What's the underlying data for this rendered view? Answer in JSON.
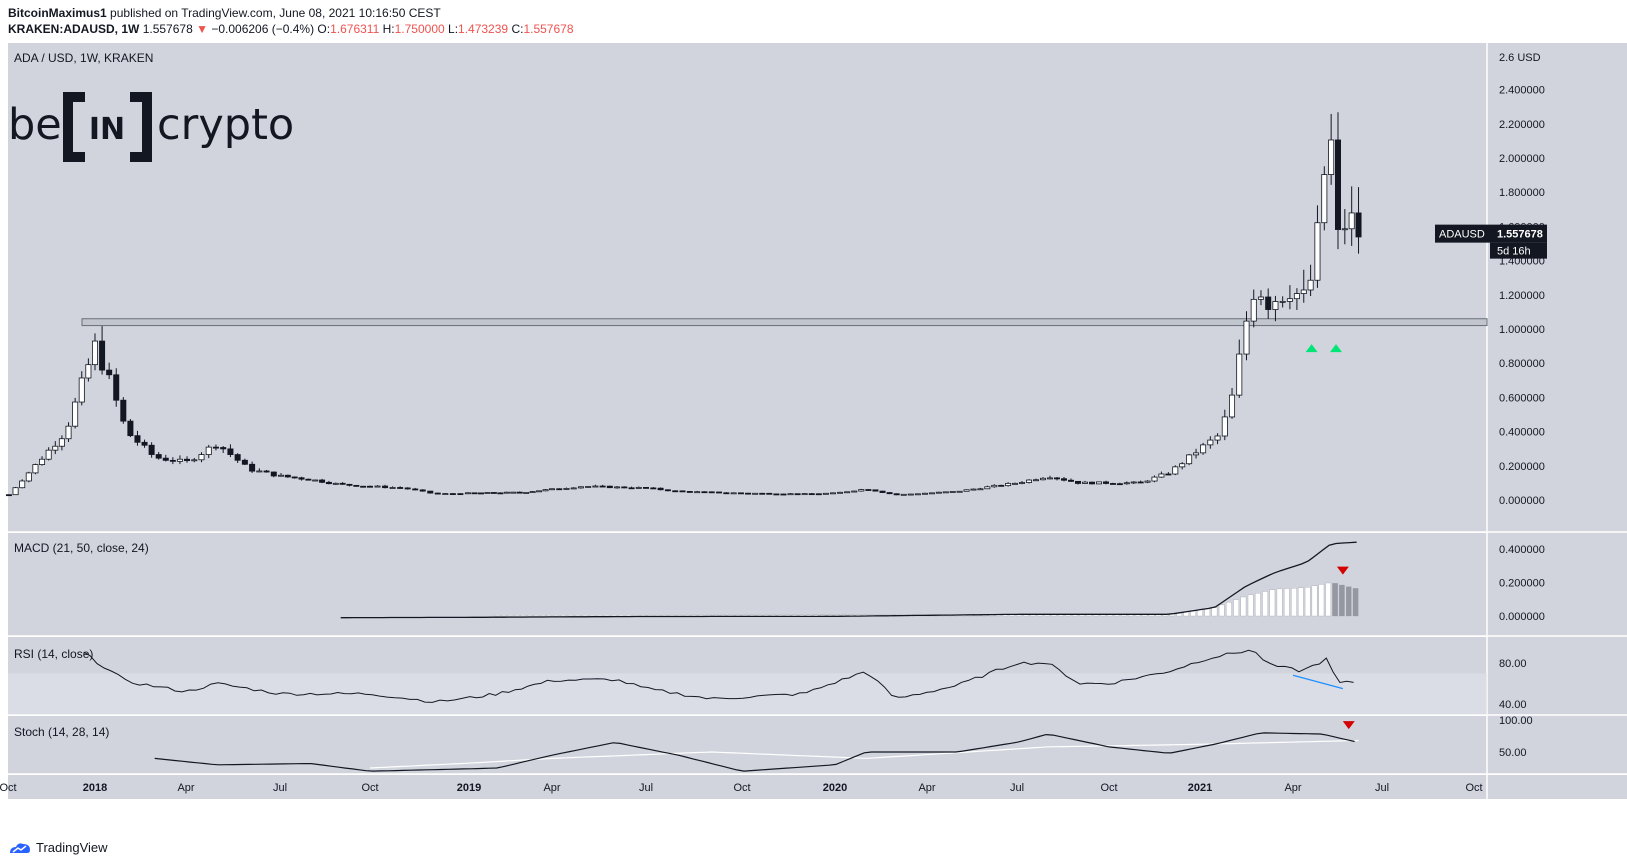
{
  "header": {
    "publisher": "BitcoinMaximus1",
    "published_text": "published on TradingView.com, June 08, 2021 10:16:50 CEST",
    "symbol": "KRAKEN:ADAUSD, 1W",
    "last": "1.557678",
    "change": "−0.006206 (−0.4%)",
    "o_label": "O:",
    "o": "1.676311",
    "h_label": "H:",
    "h": "1.750000",
    "l_label": "L:",
    "l": "1.473239",
    "c_label": "C:",
    "c": "1.557678"
  },
  "pane_title": "ADA / USD, 1W, KRAKEN",
  "logo": {
    "left": "be",
    "mid": "IN",
    "right": "crypto"
  },
  "price_tag": {
    "symbol": "ADAUSD",
    "value": "1.557678",
    "countdown": "5d 16h"
  },
  "footer": {
    "brand": "TradingView"
  },
  "colors": {
    "pane_bg": "#d1d4dc",
    "candle_up": "#ffffff",
    "candle_down": "#131722",
    "support_zone": "#b2b5be",
    "arrow_up": "#00e676",
    "arrow_down": "#d50000",
    "divergence": "#1e90ff",
    "hist_light": "#ffffff",
    "hist_dark": "#9598a1"
  },
  "chart_data": [
    {
      "type": "candlestick",
      "title": "ADA / USD, 1W, KRAKEN",
      "ylabel": "USD",
      "ylim": [
        0,
        2.6
      ],
      "y_ticks": [
        "2.400000",
        "2.200000",
        "2.000000",
        "1.800000",
        "1.600000",
        "1.400000",
        "1.200000",
        "1.000000",
        "0.800000",
        "0.600000",
        "0.400000",
        "0.200000",
        "0.000000"
      ],
      "y_tick_values": [
        2.4,
        2.2,
        2.0,
        1.8,
        1.6,
        1.4,
        1.2,
        1.0,
        0.8,
        0.6,
        0.4,
        0.2,
        0.0
      ],
      "top_tick_label": "2.6 USD",
      "x_ticks": [
        "Oct",
        "2018",
        "Apr",
        "Jul",
        "Oct",
        "2019",
        "Apr",
        "Jul",
        "Oct",
        "2020",
        "Apr",
        "Jul",
        "Oct",
        "2021",
        "Apr",
        "Jul",
        "Oct"
      ],
      "support_zone": [
        1.02,
        1.06
      ],
      "closes_key": [
        [
          "2017-10-01",
          0.025
        ],
        [
          "2017-12-01",
          0.4
        ],
        [
          "2018-01-01",
          0.9
        ],
        [
          "2018-01-15",
          0.7
        ],
        [
          "2018-02-01",
          0.4
        ],
        [
          "2018-03-01",
          0.25
        ],
        [
          "2018-04-01",
          0.22
        ],
        [
          "2018-05-01",
          0.33
        ],
        [
          "2018-06-01",
          0.18
        ],
        [
          "2018-07-01",
          0.14
        ],
        [
          "2018-08-01",
          0.12
        ],
        [
          "2018-09-01",
          0.09
        ],
        [
          "2018-10-01",
          0.08
        ],
        [
          "2018-11-01",
          0.07
        ],
        [
          "2018-12-01",
          0.035
        ],
        [
          "2019-01-01",
          0.04
        ],
        [
          "2019-03-01",
          0.045
        ],
        [
          "2019-05-01",
          0.08
        ],
        [
          "2019-07-01",
          0.07
        ],
        [
          "2019-08-01",
          0.05
        ],
        [
          "2019-10-01",
          0.04
        ],
        [
          "2019-12-01",
          0.035
        ],
        [
          "2020-01-01",
          0.04
        ],
        [
          "2020-02-01",
          0.065
        ],
        [
          "2020-03-01",
          0.03
        ],
        [
          "2020-05-01",
          0.05
        ],
        [
          "2020-07-01",
          0.1
        ],
        [
          "2020-08-01",
          0.14
        ],
        [
          "2020-09-01",
          0.1
        ],
        [
          "2020-10-01",
          0.1
        ],
        [
          "2020-11-01",
          0.1
        ],
        [
          "2020-12-01",
          0.16
        ],
        [
          "2021-01-01",
          0.3
        ],
        [
          "2021-01-20",
          0.38
        ],
        [
          "2021-02-01",
          0.6
        ],
        [
          "2021-02-15",
          1.05
        ],
        [
          "2021-02-25",
          1.3
        ],
        [
          "2021-03-05",
          1.15
        ],
        [
          "2021-03-20",
          1.2
        ],
        [
          "2021-04-01",
          1.25
        ],
        [
          "2021-04-10",
          1.15
        ],
        [
          "2021-04-20",
          1.3
        ],
        [
          "2021-05-01",
          1.75
        ],
        [
          "2021-05-08",
          2.3
        ],
        [
          "2021-05-15",
          1.5
        ],
        [
          "2021-05-22",
          1.6
        ],
        [
          "2021-05-29",
          1.65
        ],
        [
          "2021-06-07",
          1.557678
        ]
      ],
      "last": 1.557678,
      "markers": [
        {
          "type": "arrow-up",
          "date": "2021-04-20",
          "price": 0.9
        },
        {
          "type": "arrow-up",
          "date": "2021-05-15",
          "price": 0.9
        }
      ]
    },
    {
      "type": "line",
      "title": "MACD (21, 50, close, 24)",
      "ylim": [
        0,
        0.45
      ],
      "y_ticks": [
        "0.400000",
        "0.200000",
        "0.000000"
      ],
      "y_tick_values": [
        0.4,
        0.2,
        0.0
      ],
      "macd_key": [
        [
          "2018-09-01",
          -0.01
        ],
        [
          "2019-01-01",
          -0.008
        ],
        [
          "2019-07-01",
          -0.003
        ],
        [
          "2020-01-01",
          -0.002
        ],
        [
          "2020-07-01",
          0.01
        ],
        [
          "2020-12-01",
          0.01
        ],
        [
          "2021-01-15",
          0.05
        ],
        [
          "2021-02-15",
          0.18
        ],
        [
          "2021-03-15",
          0.26
        ],
        [
          "2021-04-15",
          0.32
        ],
        [
          "2021-05-10",
          0.43
        ],
        [
          "2021-06-07",
          0.44
        ]
      ],
      "hist_key": [
        [
          "2019-02-01",
          0.004
        ],
        [
          "2020-12-01",
          0.01
        ],
        [
          "2021-01-15",
          0.05
        ],
        [
          "2021-02-15",
          0.12
        ],
        [
          "2021-03-15",
          0.16
        ],
        [
          "2021-04-15",
          0.17
        ],
        [
          "2021-05-10",
          0.2
        ],
        [
          "2021-06-07",
          0.16
        ]
      ],
      "markers": [
        {
          "type": "arrow-down",
          "date": "2021-05-22",
          "value": 0.27
        }
      ]
    },
    {
      "type": "line",
      "title": "RSI (14, close)",
      "ylim": [
        35,
        95
      ],
      "y_ticks": [
        "80.00",
        "40.00"
      ],
      "y_tick_values": [
        80,
        40
      ],
      "band": [
        30,
        70
      ],
      "rsi_key": [
        [
          "2017-12-20",
          90
        ],
        [
          "2018-02-01",
          62
        ],
        [
          "2018-04-01",
          52
        ],
        [
          "2018-05-01",
          60
        ],
        [
          "2018-07-01",
          50
        ],
        [
          "2018-10-01",
          50
        ],
        [
          "2018-12-01",
          42
        ],
        [
          "2019-02-01",
          50
        ],
        [
          "2019-04-01",
          63
        ],
        [
          "2019-06-01",
          64
        ],
        [
          "2019-07-01",
          55
        ],
        [
          "2019-09-01",
          45
        ],
        [
          "2019-12-01",
          50
        ],
        [
          "2020-02-01",
          72
        ],
        [
          "2020-03-01",
          45
        ],
        [
          "2020-05-01",
          58
        ],
        [
          "2020-07-01",
          80
        ],
        [
          "2020-08-01",
          80
        ],
        [
          "2020-09-01",
          60
        ],
        [
          "2020-10-01",
          60
        ],
        [
          "2020-12-01",
          72
        ],
        [
          "2021-01-10",
          85
        ],
        [
          "2021-02-20",
          93
        ],
        [
          "2021-03-10",
          78
        ],
        [
          "2021-04-10",
          72
        ],
        [
          "2021-05-08",
          85
        ],
        [
          "2021-05-15",
          60
        ],
        [
          "2021-06-07",
          62
        ]
      ],
      "divergence_line": [
        [
          "2021-04-01",
          68
        ],
        [
          "2021-05-22",
          55
        ]
      ]
    },
    {
      "type": "line",
      "title": "Stoch (14, 28, 14)",
      "ylim": [
        25,
        100
      ],
      "y_ticks": [
        "100.00",
        "50.00"
      ],
      "y_tick_values": [
        100,
        50
      ],
      "k_key": [
        [
          "2018-03-01",
          40
        ],
        [
          "2018-05-01",
          30
        ],
        [
          "2018-08-01",
          32
        ],
        [
          "2018-10-01",
          20
        ],
        [
          "2019-02-01",
          25
        ],
        [
          "2019-04-01",
          45
        ],
        [
          "2019-06-01",
          65
        ],
        [
          "2019-08-01",
          45
        ],
        [
          "2019-10-01",
          20
        ],
        [
          "2020-01-01",
          30
        ],
        [
          "2020-02-01",
          50
        ],
        [
          "2020-05-01",
          50
        ],
        [
          "2020-07-01",
          65
        ],
        [
          "2020-08-01",
          78
        ],
        [
          "2020-10-01",
          58
        ],
        [
          "2020-12-01",
          48
        ],
        [
          "2021-01-15",
          62
        ],
        [
          "2021-03-01",
          80
        ],
        [
          "2021-05-01",
          78
        ],
        [
          "2021-06-07",
          65
        ]
      ],
      "d_key": [
        [
          "2018-10-01",
          25
        ],
        [
          "2019-04-01",
          40
        ],
        [
          "2019-09-01",
          50
        ],
        [
          "2020-02-01",
          40
        ],
        [
          "2020-08-01",
          58
        ],
        [
          "2021-01-01",
          62
        ],
        [
          "2021-06-07",
          68
        ]
      ],
      "markers": [
        {
          "type": "arrow-down",
          "date": "2021-05-28",
          "value": 92
        }
      ]
    }
  ]
}
